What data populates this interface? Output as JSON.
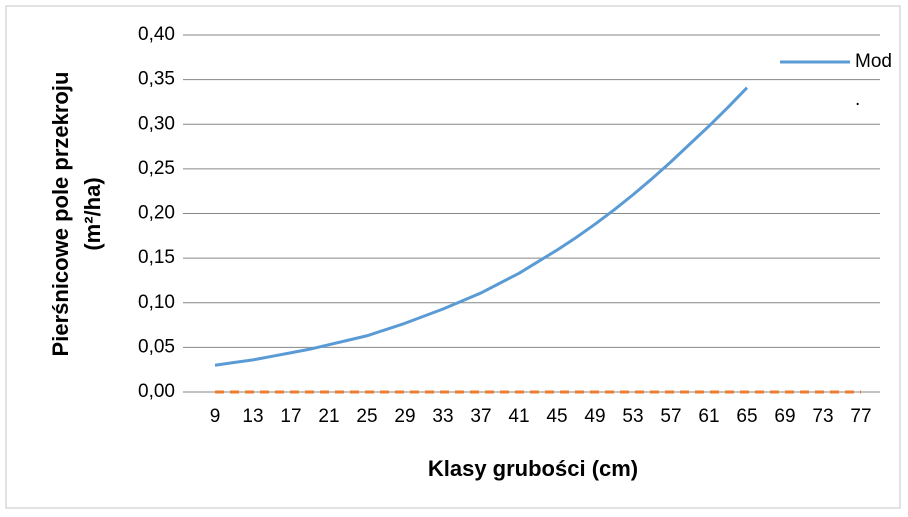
{
  "chart_data": {
    "type": "line",
    "ylabel": [
      "Pierśnicowe pole przekroju",
      "(m²/ha)"
    ],
    "xlabel": "Klasy grubości (cm)",
    "categories": [
      9,
      null,
      13,
      null,
      17,
      null,
      21,
      null,
      25,
      null,
      29,
      null,
      33,
      null,
      37,
      null,
      41,
      null,
      45,
      null,
      49,
      null,
      53,
      null,
      57,
      null,
      61,
      null,
      65,
      null,
      69,
      null,
      73,
      null,
      77
    ],
    "series": [
      {
        "name": "Mod",
        "color": "#5b9bd5",
        "dashed": false,
        "values": [
          0.03,
          0.033,
          0.036,
          0.04,
          0.044,
          0.048,
          0.053,
          0.058,
          0.063,
          0.07,
          0.077,
          0.085,
          0.093,
          0.102,
          0.111,
          0.122,
          0.133,
          0.146,
          0.159,
          0.173,
          0.188,
          0.204,
          0.221,
          0.239,
          0.258,
          0.278,
          0.298,
          0.319,
          0.341,
          null,
          null,
          null,
          null,
          null,
          null
        ]
      },
      {
        "name": ".",
        "color": "#ed7d31",
        "dashed": true,
        "values": [
          0,
          0,
          0,
          0,
          0,
          0,
          0,
          0,
          0,
          0,
          0,
          0,
          0,
          0,
          0,
          0,
          0,
          0,
          0,
          0,
          0,
          0,
          0,
          0,
          0,
          0,
          0,
          0,
          0,
          0,
          0,
          0,
          0,
          0,
          0
        ]
      }
    ],
    "ylim": [
      0,
      0.4
    ],
    "yticks": [
      {
        "value": 0,
        "label": "0,00"
      },
      {
        "value": 0.05,
        "label": "0,05"
      },
      {
        "value": 0.1,
        "label": "0,10"
      },
      {
        "value": 0.15,
        "label": "0,15"
      },
      {
        "value": 0.2,
        "label": "0,20"
      },
      {
        "value": 0.25,
        "label": "0,25"
      },
      {
        "value": 0.3,
        "label": "0,30"
      },
      {
        "value": 0.35,
        "label": "0,35"
      },
      {
        "value": 0.4,
        "label": "0,40"
      }
    ],
    "grid": true,
    "legend": "right"
  }
}
